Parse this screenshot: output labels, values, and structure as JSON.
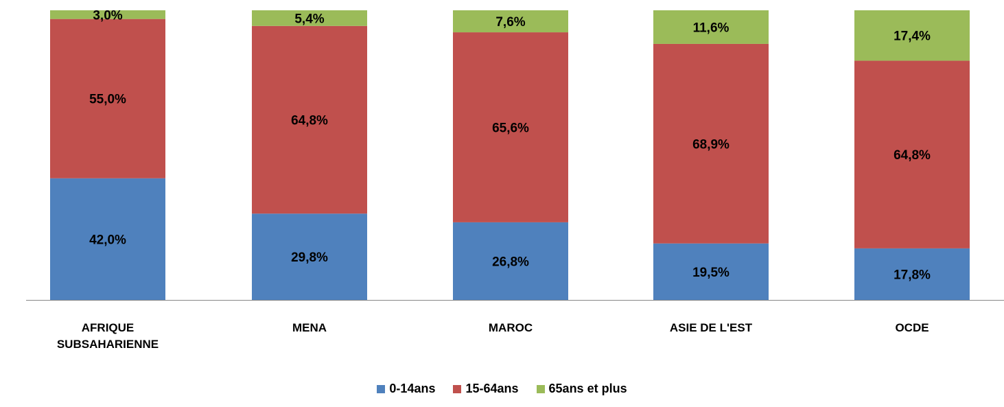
{
  "chart_data": {
    "type": "bar",
    "stacked": true,
    "categories": [
      [
        "AFRIQUE",
        "SUBSAHARIENNE"
      ],
      [
        "MENA"
      ],
      [
        "MAROC"
      ],
      [
        "ASIE DE L'EST"
      ],
      [
        "OCDE"
      ]
    ],
    "series": [
      {
        "name": "0-14ans",
        "color": "#4F81BD",
        "values": [
          42.0,
          29.8,
          26.8,
          19.5,
          17.8
        ],
        "labels": [
          "42,0%",
          "29,8%",
          "26,8%",
          "19,5%",
          "17,8%"
        ]
      },
      {
        "name": "15-64ans",
        "color": "#C0504D",
        "values": [
          55.0,
          64.8,
          65.6,
          68.9,
          64.8
        ],
        "labels": [
          "55,0%",
          "64,8%",
          "65,6%",
          "68,9%",
          "64,8%"
        ]
      },
      {
        "name": "65ans et plus",
        "color": "#9BBB59",
        "values": [
          3.0,
          5.4,
          7.6,
          11.6,
          17.4
        ],
        "labels": [
          "3,0%",
          "5,4%",
          "7,6%",
          "11,6%",
          "17,4%"
        ]
      }
    ],
    "ylim": [
      0,
      100
    ],
    "grid": false,
    "legend_position": "bottom"
  }
}
